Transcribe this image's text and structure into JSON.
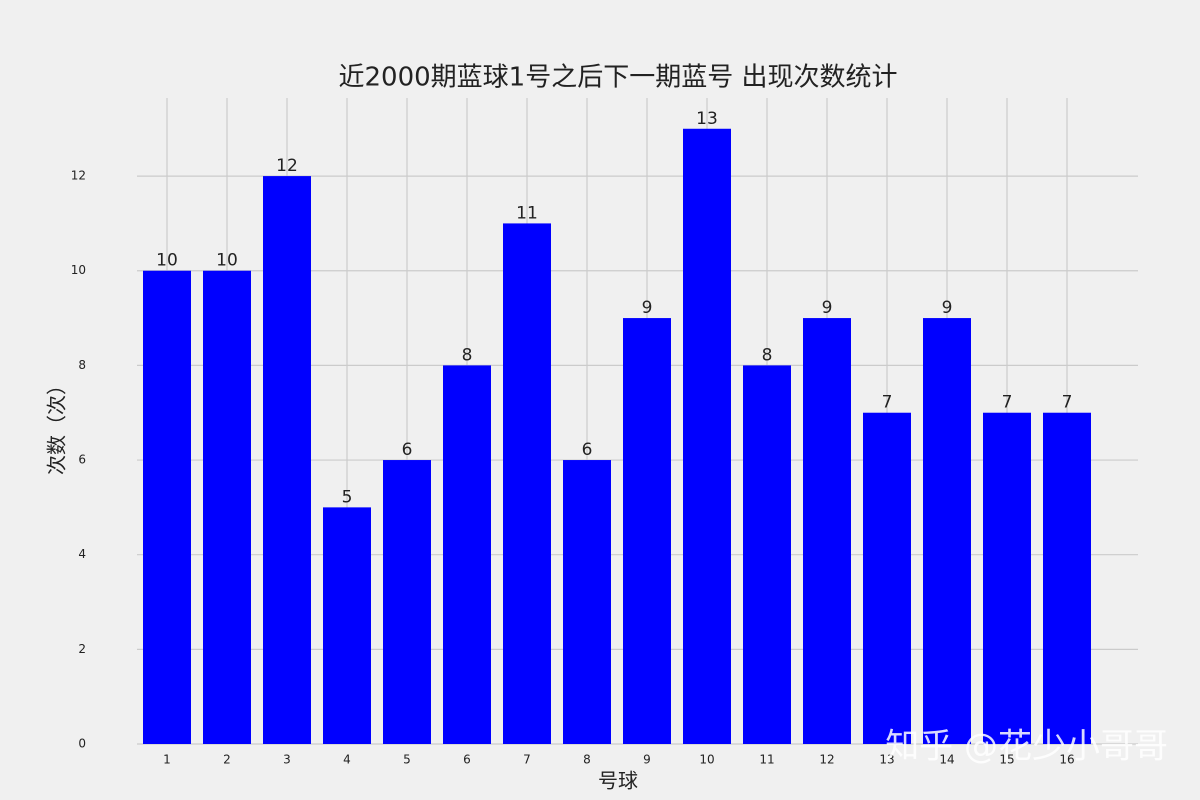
{
  "chart_data": {
    "type": "bar",
    "title": "近2000期蓝球1号之后下一期蓝号 出现次数统计",
    "xlabel": "号球",
    "ylabel": "次数（次）",
    "categories": [
      "1",
      "2",
      "3",
      "4",
      "5",
      "6",
      "7",
      "8",
      "9",
      "10",
      "11",
      "12",
      "13",
      "14",
      "15",
      "16"
    ],
    "values": [
      10,
      10,
      12,
      5,
      6,
      8,
      11,
      6,
      9,
      13,
      8,
      9,
      7,
      9,
      7,
      7
    ],
    "color": "#0000ff",
    "ylim": [
      0,
      13.65
    ],
    "yticks": [
      0,
      2,
      4,
      6,
      8,
      10,
      12
    ],
    "grid": true,
    "annotations": [
      "知乎 @花少小哥哥"
    ]
  }
}
